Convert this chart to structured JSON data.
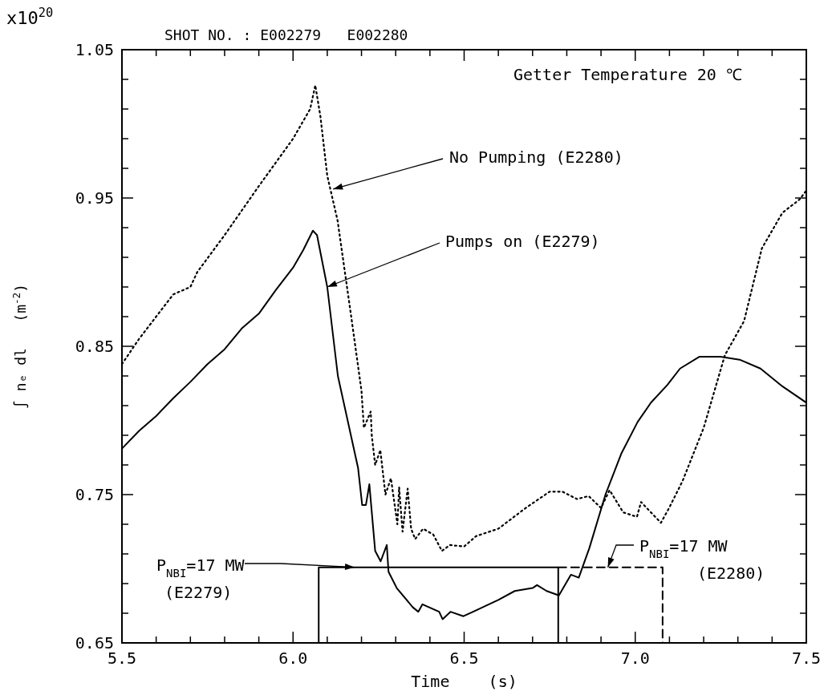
{
  "chart_data": {
    "type": "line",
    "title": "SHOT NO. : E002279   E002280",
    "xlabel": "Time    (s)",
    "ylabel": "∫ nₑ dl   (m$^{-2}$)",
    "annotations": [
      "x10$^{20}$",
      "Getter Temperature 20 ℃",
      {
        "text": "No Pumping (E2280)",
        "x": 6.117,
        "y": 0.956
      },
      {
        "text": "Pumps on (E2279)",
        "x": 6.1,
        "y": 0.89
      },
      {
        "text": "P$_{NBI}$=17 MW\n(E2279)",
        "x": 6.18,
        "y": 0.701
      },
      {
        "text": "P$_{NBI}$=17 MW\n(E2280)",
        "x": 6.92,
        "y": 0.701
      }
    ],
    "xlim": [
      5.5,
      7.5
    ],
    "ylim": [
      0.65,
      1.05
    ],
    "xticks": [
      5.5,
      {
        "value": 5.6,
        "label": null
      },
      {
        "value": 5.7,
        "label": null
      },
      {
        "value": 5.8,
        "label": null
      },
      {
        "value": 5.9,
        "label": null
      },
      {
        "value": 6,
        "label": "6.0"
      },
      {
        "value": 6.1,
        "label": null
      },
      {
        "value": 6.2,
        "label": null
      },
      {
        "value": 6.3,
        "label": null
      },
      {
        "value": 6.4,
        "label": null
      },
      6.5,
      {
        "value": 6.6,
        "label": null
      },
      {
        "value": 6.7,
        "label": null
      },
      {
        "value": 6.8,
        "label": null
      },
      {
        "value": 6.9,
        "label": null
      },
      {
        "value": 7,
        "label": "7.0"
      },
      {
        "value": 7.1,
        "label": null
      },
      {
        "value": 7.2,
        "label": null
      },
      {
        "value": 7.3,
        "label": null
      },
      {
        "value": 7.4,
        "label": null
      },
      7.5
    ],
    "yticks": [
      0.65,
      {
        "value": 0.67,
        "label": null
      },
      {
        "value": 0.69,
        "label": null
      },
      {
        "value": 0.71,
        "label": null
      },
      {
        "value": 0.73,
        "label": null
      },
      0.75,
      {
        "value": 0.77,
        "label": null
      },
      {
        "value": 0.79,
        "label": null
      },
      {
        "value": 0.81,
        "label": null
      },
      {
        "value": 0.83,
        "label": null
      },
      0.85,
      {
        "value": 0.87,
        "label": null
      },
      {
        "value": 0.89,
        "label": null
      },
      {
        "value": 0.91,
        "label": null
      },
      {
        "value": 0.93,
        "label": null
      },
      0.95,
      {
        "value": 0.97,
        "label": null
      },
      {
        "value": 0.99,
        "label": null
      },
      {
        "value": 1.01,
        "label": null
      },
      {
        "value": 1.03,
        "label": null
      },
      1.05
    ],
    "grid": false,
    "series": [
      {
        "color": "#000000",
        "line_style": "dotted",
        "x": [
          5.5,
          5.55,
          5.6,
          5.65,
          5.7,
          5.72,
          5.8,
          5.9,
          6.0,
          6.05,
          6.065,
          6.08,
          6.1,
          6.13,
          6.17,
          6.2,
          6.207,
          6.227,
          6.23,
          6.24,
          6.255,
          6.27,
          6.286,
          6.305,
          6.31,
          6.32,
          6.335,
          6.345,
          6.357,
          6.38,
          6.41,
          6.435,
          6.458,
          6.5,
          6.535,
          6.6,
          6.68,
          6.75,
          6.787,
          6.83,
          6.864,
          6.9,
          6.925,
          6.965,
          7.005,
          7.017,
          7.075,
          7.099,
          7.138,
          7.2,
          7.262,
          7.318,
          7.37,
          7.43,
          7.48,
          7.5
        ],
        "values": [
          0.838,
          0.855,
          0.87,
          0.885,
          0.89,
          0.9,
          0.925,
          0.958,
          0.99,
          1.01,
          1.026,
          1.005,
          0.965,
          0.935,
          0.87,
          0.82,
          0.795,
          0.806,
          0.79,
          0.77,
          0.78,
          0.75,
          0.761,
          0.73,
          0.755,
          0.725,
          0.754,
          0.727,
          0.72,
          0.727,
          0.723,
          0.712,
          0.716,
          0.715,
          0.722,
          0.727,
          0.741,
          0.752,
          0.752,
          0.747,
          0.749,
          0.741,
          0.753,
          0.738,
          0.735,
          0.745,
          0.731,
          0.741,
          0.759,
          0.795,
          0.844,
          0.867,
          0.916,
          0.94,
          0.949,
          0.955
        ]
      },
      {
        "color": "#000000",
        "line_style": "solid",
        "x": [
          5.5,
          5.55,
          5.6,
          5.65,
          5.7,
          5.75,
          5.8,
          5.85,
          5.9,
          5.95,
          6.0,
          6.03,
          6.058,
          6.07,
          6.1,
          6.131,
          6.19,
          6.202,
          6.213,
          6.223,
          6.24,
          6.256,
          6.274,
          6.279,
          6.303,
          6.35,
          6.366,
          6.378,
          6.427,
          6.437,
          6.46,
          6.498,
          6.545,
          6.6,
          6.648,
          6.7,
          6.713,
          6.741,
          6.777,
          6.812,
          6.835,
          6.866,
          6.913,
          6.96,
          7.007,
          7.046,
          7.094,
          7.131,
          7.188,
          7.249,
          7.305,
          7.366,
          7.43,
          7.5
        ],
        "values": [
          0.781,
          0.793,
          0.803,
          0.815,
          0.826,
          0.838,
          0.848,
          0.862,
          0.872,
          0.888,
          0.903,
          0.915,
          0.928,
          0.925,
          0.89,
          0.83,
          0.768,
          0.743,
          0.743,
          0.757,
          0.712,
          0.705,
          0.716,
          0.698,
          0.687,
          0.674,
          0.671,
          0.676,
          0.671,
          0.666,
          0.671,
          0.668,
          0.673,
          0.679,
          0.685,
          0.687,
          0.689,
          0.685,
          0.682,
          0.696,
          0.694,
          0.714,
          0.75,
          0.778,
          0.799,
          0.812,
          0.824,
          0.835,
          0.843,
          0.843,
          0.841,
          0.835,
          0.823,
          0.812
        ]
      },
      {
        "color": "#000000",
        "line_style": "solid",
        "x": [
          6.075,
          6.075,
          6.775,
          6.775
        ],
        "values": [
          0.65,
          0.701,
          0.701,
          0.65
        ]
      },
      {
        "color": "#000000",
        "line_style": "dashed",
        "x": [
          6.775,
          6.775,
          7.08,
          7.08
        ],
        "values": [
          0.701,
          0.701,
          0.701,
          0.65
        ]
      }
    ]
  }
}
